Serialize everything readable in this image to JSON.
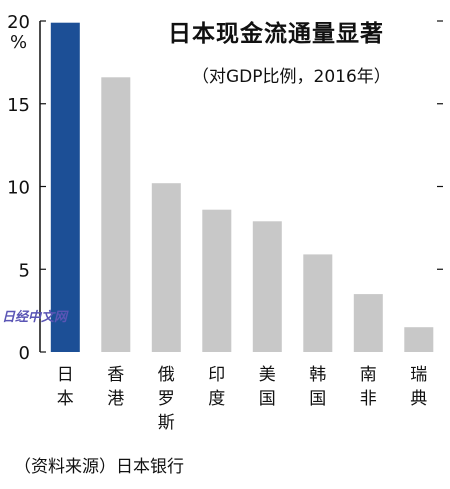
{
  "chart_data": {
    "type": "bar",
    "title": "日本现金流通量显著",
    "subtitle": "（对GDP比例，2016年）",
    "unit": "%",
    "categories": [
      "日本",
      "香港",
      "俄罗斯",
      "印度",
      "美国",
      "韩国",
      "南非",
      "瑞典"
    ],
    "values": [
      19.9,
      16.6,
      10.2,
      8.6,
      7.9,
      5.9,
      3.5,
      1.5
    ],
    "highlight_index": 0,
    "ylim": [
      0,
      20
    ],
    "yticks": [
      0,
      5,
      10,
      15,
      20
    ],
    "grid": false,
    "colors": {
      "highlight": "#1c4f96",
      "bar": "#c8c8c8",
      "axis": "#111111"
    }
  },
  "source": "（资料来源）日本银行",
  "watermark": "日经中文网"
}
